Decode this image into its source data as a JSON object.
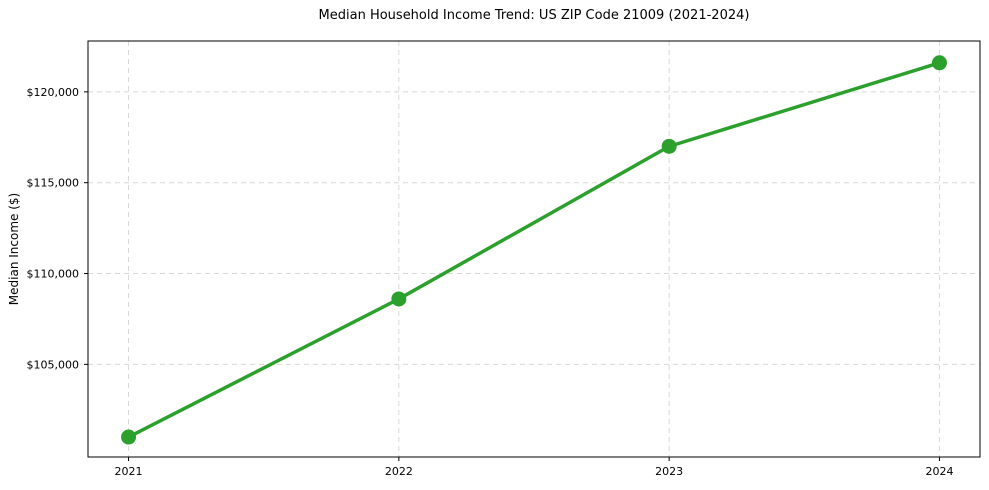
{
  "page": {
    "background_color": "#ffffff",
    "text_color": "#000000"
  },
  "chart_data": {
    "type": "line",
    "title": "Median Household Income Trend: US ZIP Code 21009 (2021-2024)",
    "xlabel": "",
    "ylabel": "Median Income ($)",
    "x": [
      2021,
      2022,
      2023,
      2024
    ],
    "xtick_labels": [
      "2021",
      "2022",
      "2023",
      "2024"
    ],
    "series": [
      {
        "name": "Median Household Income",
        "values": [
          101000,
          108600,
          117000,
          121600
        ],
        "color": "#2ca02c",
        "marker": "circle"
      }
    ],
    "yticks": [
      105000,
      110000,
      115000,
      120000
    ],
    "ytick_labels": [
      "$105,000",
      "$110,000",
      "$115,000",
      "$120,000"
    ],
    "ylim": [
      99900,
      122800
    ],
    "grid": true,
    "grid_color": "#d8d8d8",
    "grid_style": "dashed",
    "spine_color": "#000000",
    "legend": "none"
  }
}
